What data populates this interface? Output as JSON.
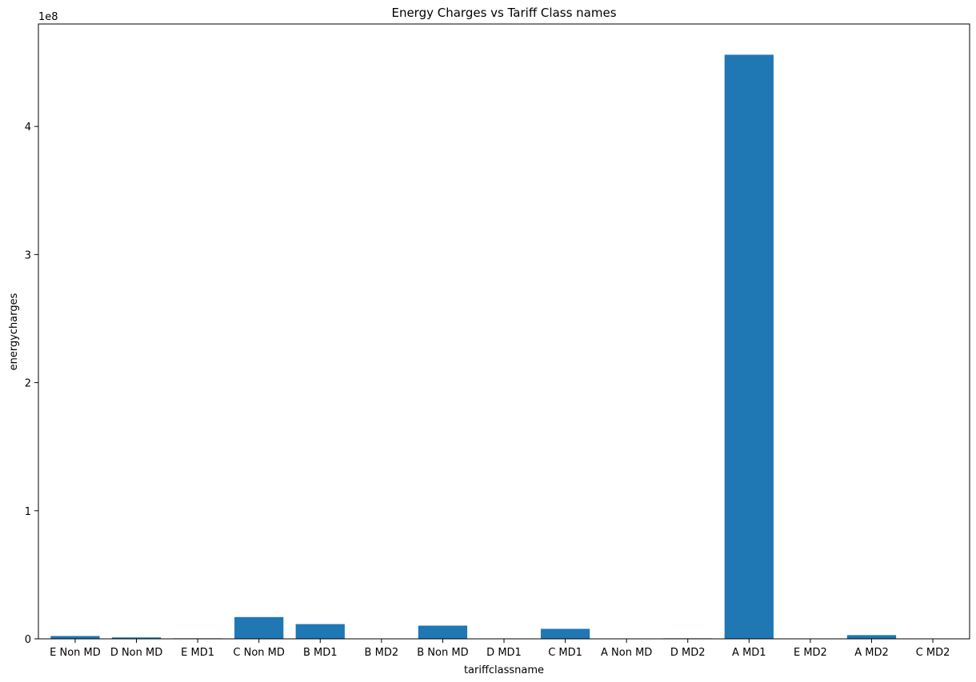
{
  "chart_data": {
    "type": "bar",
    "title": "Energy Charges vs Tariff Class names",
    "xlabel": "tariffclassname",
    "ylabel": "energycharges",
    "y_offset_label": "1e8",
    "ylim": [
      0,
      480000000
    ],
    "y_ticks": [
      0,
      100000000,
      200000000,
      300000000,
      400000000
    ],
    "y_tick_labels": [
      "0",
      "1",
      "2",
      "3",
      "4"
    ],
    "categories": [
      "E Non MD",
      "D Non MD",
      "E MD1",
      "C Non MD",
      "B MD1",
      "B MD2",
      "B Non MD",
      "D MD1",
      "C MD1",
      "A Non MD",
      "D MD2",
      "A MD1",
      "E MD2",
      "A MD2",
      "C MD2"
    ],
    "values": [
      2200000,
      1100000,
      400000,
      17000000,
      11500000,
      300000,
      10300000,
      300000,
      7800000,
      50000,
      400000,
      456000000,
      60000,
      2900000,
      40000
    ],
    "bar_color": "#1f77b4",
    "grid": false,
    "legend": "none"
  }
}
